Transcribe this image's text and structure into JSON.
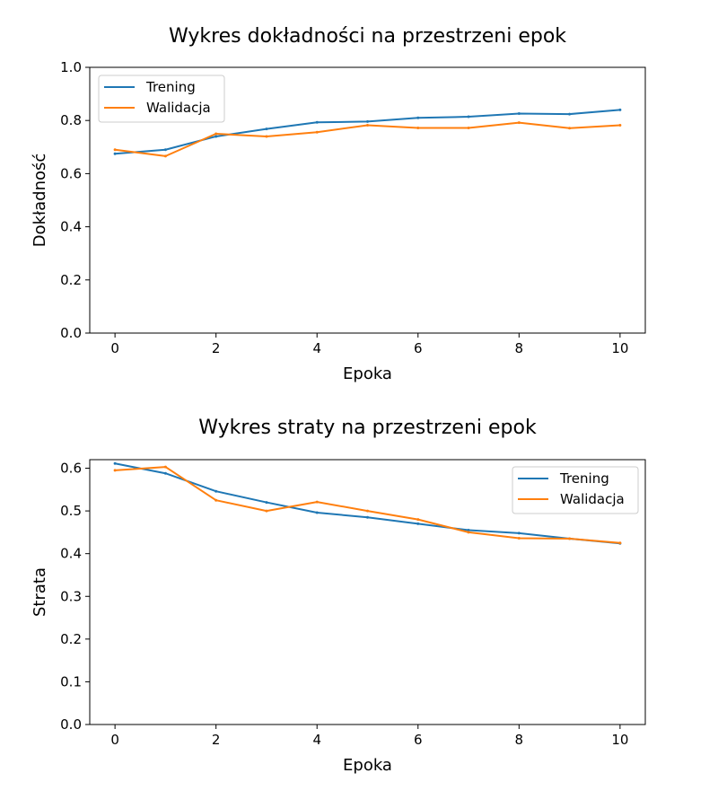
{
  "chart_data": [
    {
      "type": "line",
      "title": "Wykres dokładności na przestrzeni epok",
      "xlabel": "Epoka",
      "ylabel": "Dokładność",
      "xlim": [
        -0.5,
        10.5
      ],
      "ylim": [
        0.0,
        1.0
      ],
      "xticks": [
        "0",
        "2",
        "4",
        "6",
        "8",
        "10"
      ],
      "yticks": [
        "0.0",
        "0.2",
        "0.4",
        "0.6",
        "0.8",
        "1.0"
      ],
      "grid": false,
      "legend_position": "upper-left",
      "x": [
        0,
        1,
        2,
        3,
        4,
        5,
        6,
        7,
        8,
        9,
        10
      ],
      "series": [
        {
          "name": "Trening",
          "color": "#1f77b4",
          "values": [
            0.675,
            0.69,
            0.74,
            0.768,
            0.793,
            0.796,
            0.81,
            0.814,
            0.826,
            0.824,
            0.84
          ]
        },
        {
          "name": "Walidacja",
          "color": "#ff7f0e",
          "values": [
            0.69,
            0.666,
            0.75,
            0.74,
            0.756,
            0.782,
            0.772,
            0.772,
            0.792,
            0.771,
            0.782
          ]
        }
      ]
    },
    {
      "type": "line",
      "title": "Wykres straty na przestrzeni epok",
      "xlabel": "Epoka",
      "ylabel": "Strata",
      "xlim": [
        -0.5,
        10.5
      ],
      "ylim": [
        0.0,
        0.62
      ],
      "xticks": [
        "0",
        "2",
        "4",
        "6",
        "8",
        "10"
      ],
      "yticks": [
        "0.0",
        "0.1",
        "0.2",
        "0.3",
        "0.4",
        "0.5",
        "0.6"
      ],
      "grid": false,
      "legend_position": "upper-right",
      "x": [
        0,
        1,
        2,
        3,
        4,
        5,
        6,
        7,
        8,
        9,
        10
      ],
      "series": [
        {
          "name": "Trening",
          "color": "#1f77b4",
          "values": [
            0.611,
            0.588,
            0.546,
            0.52,
            0.496,
            0.485,
            0.47,
            0.455,
            0.448,
            0.435,
            0.424
          ]
        },
        {
          "name": "Walidacja",
          "color": "#ff7f0e",
          "values": [
            0.595,
            0.603,
            0.525,
            0.5,
            0.521,
            0.5,
            0.48,
            0.45,
            0.436,
            0.435,
            0.425
          ]
        }
      ]
    }
  ]
}
